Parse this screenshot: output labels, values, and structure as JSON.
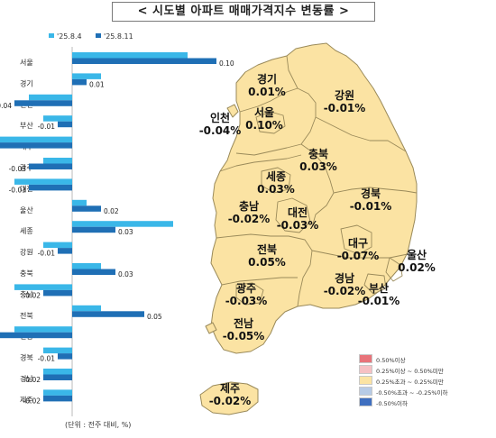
{
  "title": "< 시도별 아파트 매매가격지수 변동률 >",
  "colors": {
    "map_fill": "#fbe3a3",
    "map_stroke": "#9a8a5a",
    "bar_week1": "#3ab7e8",
    "bar_week2": "#1f6fb5",
    "axis": "#bbbbbb"
  },
  "chart_data": {
    "type": "bar",
    "orientation": "horizontal",
    "series": [
      {
        "name": "'25.8.4"
      },
      {
        "name": "'25.8.11"
      }
    ],
    "categories": [
      "서울",
      "경기",
      "인천",
      "부산",
      "대구",
      "광주",
      "대전",
      "울산",
      "세종",
      "강원",
      "충북",
      "충남",
      "전북",
      "전남",
      "경북",
      "경남",
      "제주"
    ],
    "values_week1": [
      0.08,
      0.02,
      -0.03,
      -0.02,
      -0.1,
      -0.02,
      -0.04,
      0.01,
      0.07,
      -0.02,
      0.02,
      -0.04,
      0.02,
      -0.04,
      -0.02,
      -0.02,
      -0.02
    ],
    "values_week2": [
      0.1,
      0.01,
      -0.04,
      -0.01,
      -0.07,
      -0.03,
      -0.03,
      0.02,
      0.03,
      -0.01,
      0.03,
      -0.02,
      0.05,
      -0.05,
      -0.01,
      -0.02,
      -0.02
    ],
    "labels_week2": [
      "0.10",
      "0.01",
      "-0.04",
      "-0.01",
      "-0.07",
      "-0.03",
      "-0.03",
      "0.02",
      "0.03",
      "-0.01",
      "0.03",
      "-0.02",
      "0.05",
      "-0.05",
      "-0.01",
      "-0.02",
      "-0.02"
    ],
    "unit_note": "(단위 : 전주 대비, %)"
  },
  "map": {
    "regions": [
      {
        "name": "경기",
        "value": "0.01%"
      },
      {
        "name": "강원",
        "value": "-0.01%"
      },
      {
        "name": "인천",
        "value": "-0.04%"
      },
      {
        "name": "서울",
        "value": "0.10%"
      },
      {
        "name": "충북",
        "value": "0.03%"
      },
      {
        "name": "세종",
        "value": "0.03%"
      },
      {
        "name": "충남",
        "value": "-0.02%"
      },
      {
        "name": "대전",
        "value": "-0.03%"
      },
      {
        "name": "경북",
        "value": "-0.01%"
      },
      {
        "name": "전북",
        "value": "0.05%"
      },
      {
        "name": "대구",
        "value": "-0.07%"
      },
      {
        "name": "울산",
        "value": "0.02%"
      },
      {
        "name": "광주",
        "value": "-0.03%"
      },
      {
        "name": "경남",
        "value": "-0.02%"
      },
      {
        "name": "부산",
        "value": "-0.01%"
      },
      {
        "name": "전남",
        "value": "-0.05%"
      },
      {
        "name": "제주",
        "value": "-0.02%"
      }
    ],
    "legend": [
      {
        "label": "0.50%이상",
        "color": "#e8737a"
      },
      {
        "label": "0.25%이상 ~ 0.50%미만",
        "color": "#f6c0c3"
      },
      {
        "label": "0.25%초과 ~ 0.25%미만",
        "color": "#fbe3a3"
      },
      {
        "label": "-0.50%초과 ~ -0.25%이하",
        "color": "#b7cbe6"
      },
      {
        "label": "-0.50%이하",
        "color": "#3f6fc0"
      }
    ]
  }
}
